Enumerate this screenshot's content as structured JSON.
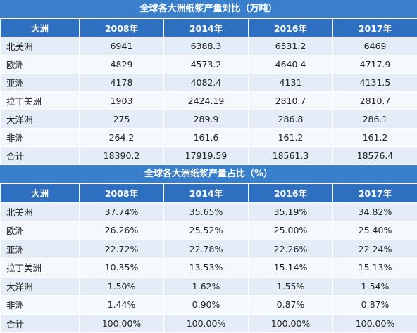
{
  "table1": {
    "title": "全球各大洲纸浆产量对比（万吨）",
    "headers": [
      "大洲",
      "2008年",
      "2014年",
      "2016年",
      "2017年"
    ],
    "rows": [
      [
        "北美洲",
        "6941",
        "6388.3",
        "6531.2",
        "6469"
      ],
      [
        "欧洲",
        "4829",
        "4573.2",
        "4640.4",
        "4717.9"
      ],
      [
        "亚洲",
        "4178",
        "4082.4",
        "4131",
        "4131.5"
      ],
      [
        "拉丁美洲",
        "1903",
        "2424.19",
        "2810.7",
        "2810.7"
      ],
      [
        "大洋洲",
        "275",
        "289.9",
        "286.8",
        "286.1"
      ],
      [
        "非洲",
        "264.2",
        "161.6",
        "161.2",
        "161.2"
      ],
      [
        "合计",
        "18390.2",
        "17919.59",
        "18561.3",
        "18576.4"
      ]
    ]
  },
  "table2": {
    "title": "全球各大洲纸浆产量占比（%）",
    "headers": [
      "大洲",
      "2008年",
      "2014年",
      "2016年",
      "2017年"
    ],
    "rows": [
      [
        "北美洲",
        "37.74%",
        "35.65%",
        "35.19%",
        "34.82%"
      ],
      [
        "欧洲",
        "26.26%",
        "25.52%",
        "25.00%",
        "25.40%"
      ],
      [
        "亚洲",
        "22.72%",
        "22.78%",
        "22.26%",
        "22.24%"
      ],
      [
        "拉丁美洲",
        "10.35%",
        "13.53%",
        "15.14%",
        "15.13%"
      ],
      [
        "大洋洲",
        "1.50%",
        "1.62%",
        "1.55%",
        "1.54%"
      ],
      [
        "非洲",
        "1.44%",
        "0.90%",
        "0.87%",
        "0.87%"
      ],
      [
        "合计",
        "100.00%",
        "100.00%",
        "100.00%",
        "100.00%"
      ]
    ]
  },
  "colors": {
    "header_bg": "#2f6fbf",
    "title_bg": "#3a7fcb",
    "row_odd": "#e3ecf7",
    "row_even": "#f5f8fc"
  }
}
